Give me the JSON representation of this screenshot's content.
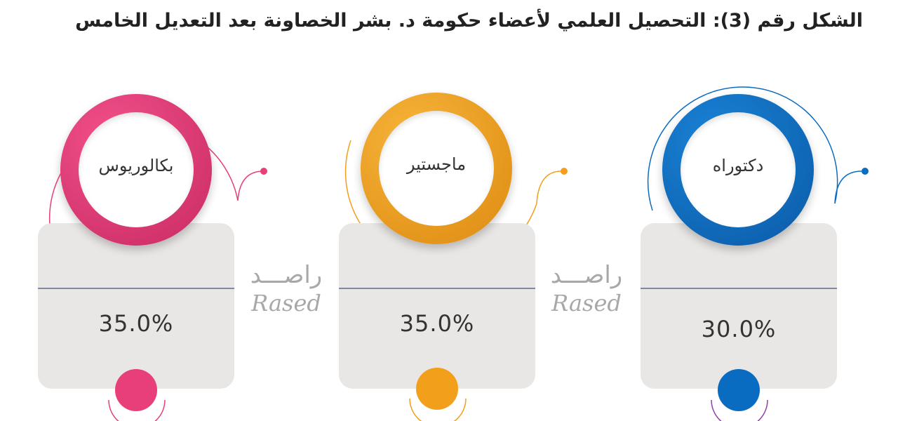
{
  "title": "الشكل رقم (3): التحصيل العلمي لأعضاء حكومة د. بشر الخصاونة بعد التعديل الخامس",
  "watermark": {
    "arabic": "راصـــد",
    "english": "Rased"
  },
  "colors": {
    "pink": "#e83e79",
    "orange": "#f29f1c",
    "blue": "#0a6cc0",
    "card": "#e9e7e5"
  },
  "chart_data": {
    "type": "infographic",
    "title": "الشكل رقم (3): التحصيل العلمي لأعضاء حكومة د. بشر الخصاونة بعد التعديل الخامس",
    "categories": [
      "بكالوريوس",
      "ماجستير",
      "دكتوراه"
    ],
    "values": [
      35.0,
      35.0,
      30.0
    ],
    "unit": "%",
    "value_labels": [
      "35.0%",
      "35.0%",
      "30.0%"
    ],
    "colors": [
      "#e83e79",
      "#f29f1c",
      "#0a6cc0"
    ]
  }
}
